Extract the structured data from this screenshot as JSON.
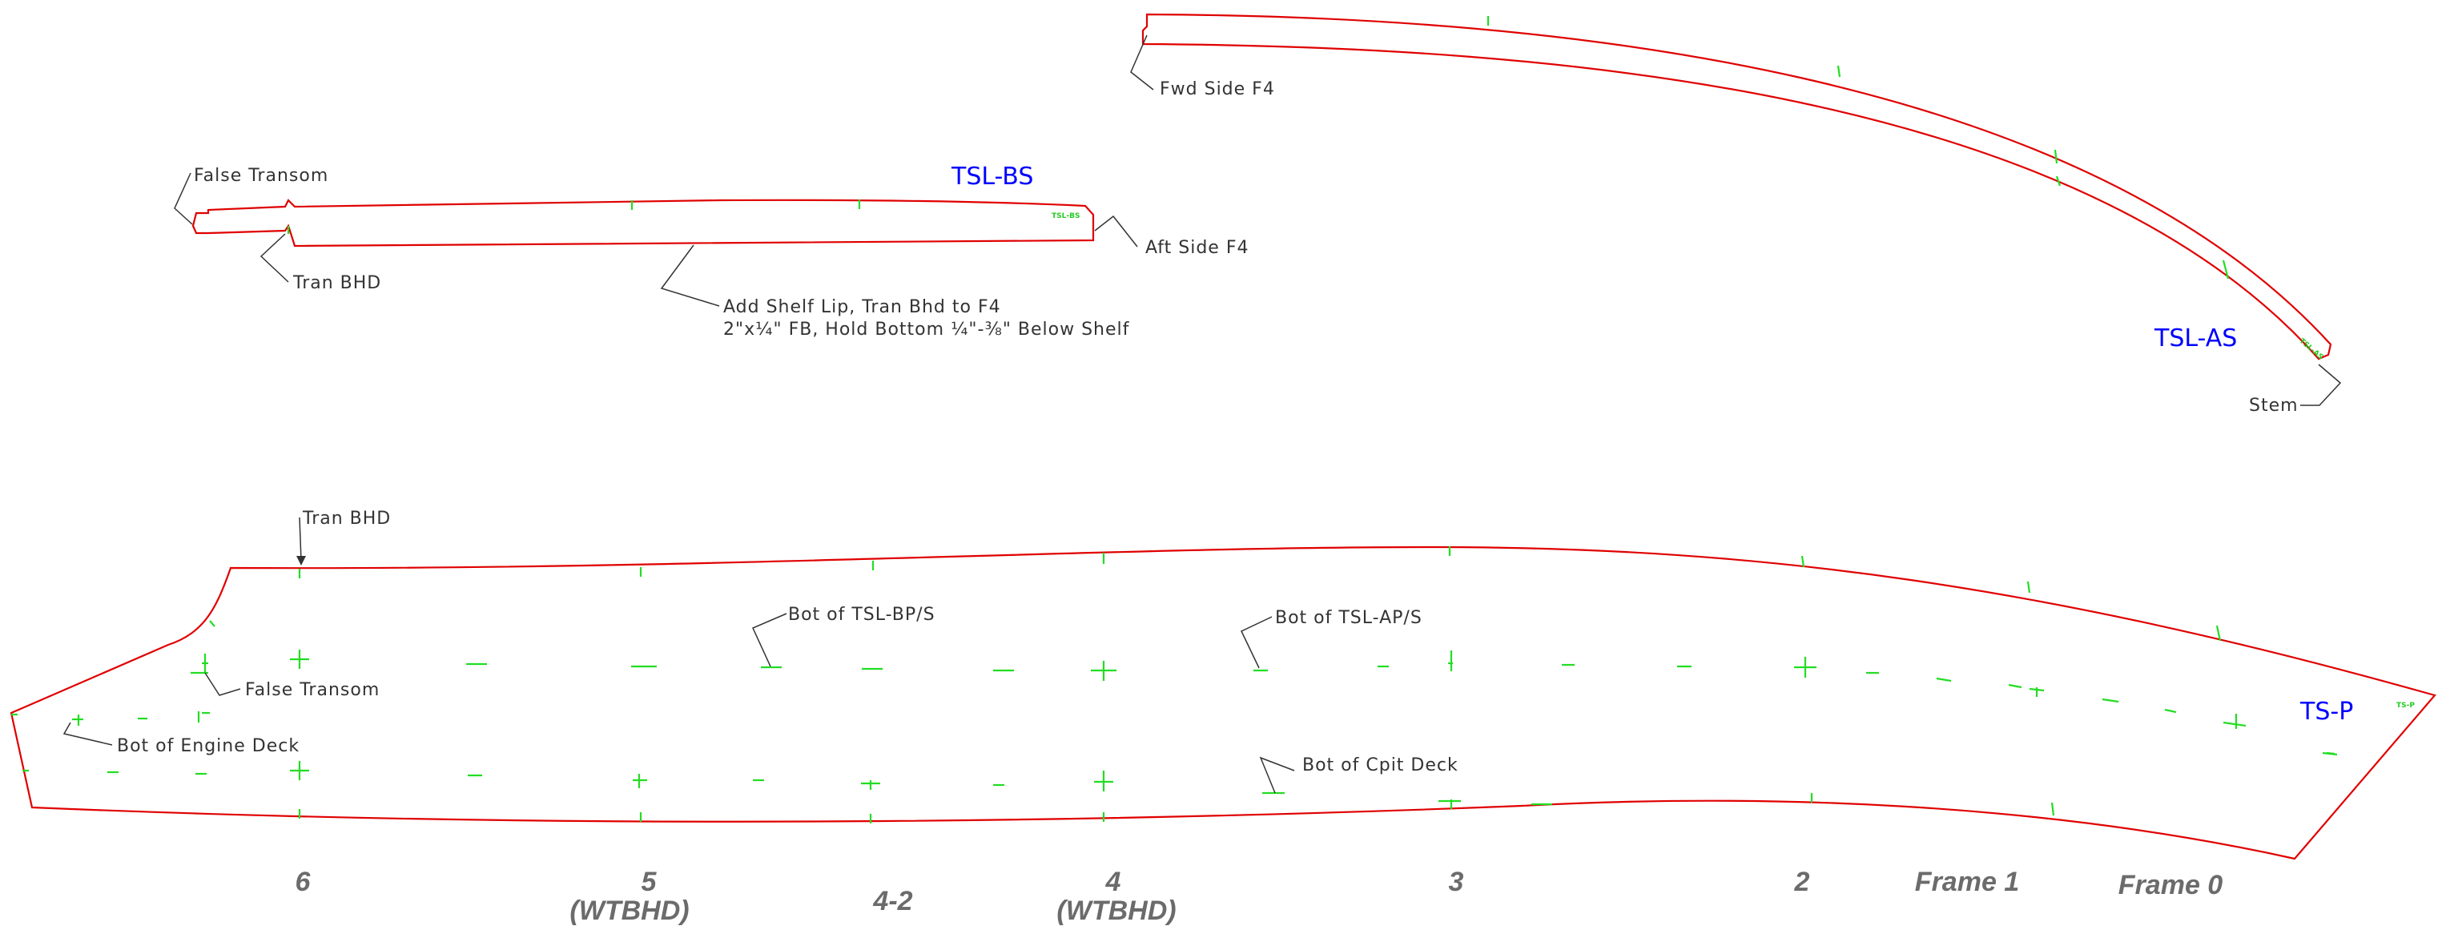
{
  "parts": {
    "tsl_bs": {
      "title": "TSL-BS",
      "tag": "TSL-BS"
    },
    "tsl_as": {
      "title": "TSL-AS",
      "tag": "TSL-AS"
    },
    "ts_p": {
      "title": "TS-P",
      "tag": "TS-P"
    }
  },
  "notes": {
    "fwd_side_f4": "Fwd Side F4",
    "false_transom_top": "False Transom",
    "tran_bhd_top": "Tran BHD",
    "aft_side_f4": "Aft Side F4",
    "add_shelf_line1": "Add Shelf Lip, Tran Bhd to F4",
    "add_shelf_line2": "2\"x¼\" FB, Hold Bottom ¼\"-⅜\" Below Shelf",
    "stem": "Stem",
    "tran_bhd_main": "Tran BHD",
    "false_transom_main": "False Transom",
    "bot_engine_deck": "Bot of Engine Deck",
    "bot_tsl_bp": "Bot of TSL-BP/S",
    "bot_tsl_ap": "Bot of TSL-AP/S",
    "bot_cpit_deck": "Bot of Cpit Deck"
  },
  "frames": [
    {
      "label": "6",
      "sub": ""
    },
    {
      "label": "5",
      "sub": "(WTBHD)"
    },
    {
      "label": "4-2",
      "sub": ""
    },
    {
      "label": "4",
      "sub": "(WTBHD)"
    },
    {
      "label": "3",
      "sub": ""
    },
    {
      "label": "2",
      "sub": ""
    },
    {
      "label": "Frame 1",
      "sub": ""
    },
    {
      "label": "Frame 0",
      "sub": ""
    }
  ],
  "colors": {
    "outline": "#e00000",
    "marks": "#22dd22",
    "titles": "#0000ff",
    "notes": "#333333",
    "frames": "#6b6b6b"
  }
}
